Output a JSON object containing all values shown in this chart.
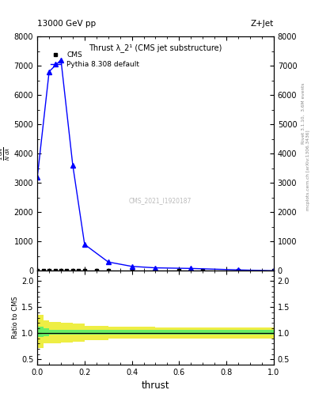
{
  "title_top": "13000 GeV pp",
  "title_right": "Z+Jet",
  "plot_title": "Thrust λ_2¹ (CMS jet substructure)",
  "xlabel": "thrust",
  "ylabel_main": "$\\frac{1}{N}\\frac{dN}{d\\lambda}$",
  "ylabel_ratio": "Ratio to CMS",
  "right_label_top": "Rivet 3.1.10,  3.6M events",
  "right_label_bottom": "mcplots.cern.ch [arXiv:1306.3436]",
  "watermark": "CMS_2021_I1920187",
  "cms_x": [
    0.0,
    0.025,
    0.05,
    0.075,
    0.1,
    0.125,
    0.15,
    0.175,
    0.2,
    0.25,
    0.3,
    0.4,
    0.5,
    0.6,
    0.7,
    0.85,
    1.0
  ],
  "cms_y": [
    0,
    0,
    0,
    0,
    0,
    0,
    0,
    0,
    0,
    0,
    0,
    0,
    0,
    0,
    0,
    0,
    0
  ],
  "pythia_x": [
    0.0,
    0.05,
    0.1,
    0.15,
    0.2,
    0.3,
    0.4,
    0.5,
    0.65,
    0.85,
    1.0
  ],
  "pythia_y": [
    3200,
    6800,
    7200,
    3600,
    900,
    300,
    150,
    100,
    80,
    30,
    0
  ],
  "ylim_main": [
    0,
    8000
  ],
  "ylim_ratio": [
    0.4,
    2.2
  ],
  "yticks_main": [
    0,
    1000,
    2000,
    3000,
    4000,
    5000,
    6000,
    7000,
    8000
  ],
  "yticks_ratio": [
    0.5,
    1.0,
    1.5,
    2.0
  ],
  "xlim": [
    0,
    1
  ],
  "cms_color": "black",
  "pythia_color": "blue",
  "green_color": "#66ee66",
  "yellow_color": "#eeee44",
  "background_color": "white",
  "yellow_x": [
    0.0,
    0.025,
    0.05,
    0.1,
    0.15,
    0.2,
    0.3,
    0.5,
    0.7,
    1.0
  ],
  "yellow_lo": [
    0.72,
    0.8,
    0.8,
    0.82,
    0.83,
    0.87,
    0.9,
    0.9,
    0.9,
    0.9
  ],
  "yellow_hi": [
    1.35,
    1.25,
    1.22,
    1.2,
    1.18,
    1.14,
    1.12,
    1.11,
    1.11,
    1.11
  ],
  "green_x": [
    0.0,
    0.025,
    0.05,
    0.1,
    0.15,
    0.2,
    0.3,
    0.5,
    0.7,
    1.0
  ],
  "green_lo": [
    0.93,
    0.95,
    0.97,
    0.97,
    0.97,
    0.97,
    0.97,
    0.97,
    0.97,
    0.97
  ],
  "green_hi": [
    1.12,
    1.1,
    1.07,
    1.07,
    1.07,
    1.07,
    1.07,
    1.07,
    1.07,
    1.07
  ]
}
